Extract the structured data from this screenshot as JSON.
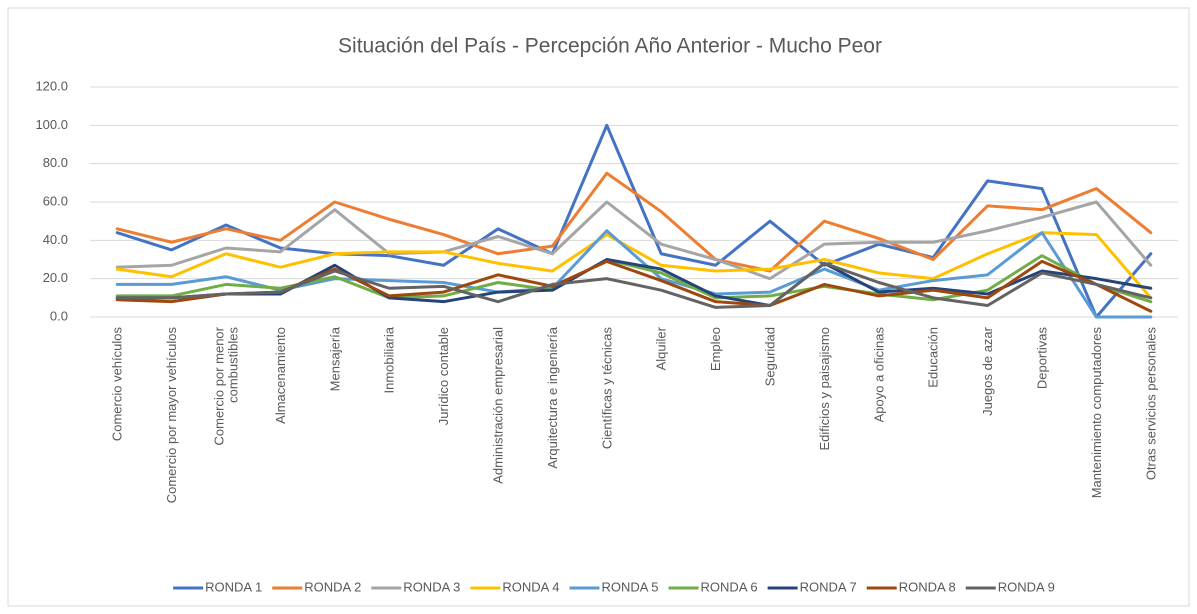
{
  "chart_data": {
    "type": "line",
    "title": "Situación del País - Percepción Año Anterior - Mucho Peor",
    "categories": [
      "Comercio vehículos",
      "Comercio  por mayor vehículos",
      "Comercio por menor\ncombustibles",
      "Almacenamiento",
      "Mensajería",
      "Inmobiliaria",
      "Jurídico contable",
      "Administración empresarial",
      "Arquitectura e ingeniería",
      "Científicas y técnicas",
      "Alquiler",
      "Empleo",
      "Seguridad",
      "Edificios y paisajismo",
      "Apoyo a oficinas",
      "Educación",
      "Juegos de azar",
      "Deportivas",
      "Mantenimiento computadores",
      "Otras servicios personales"
    ],
    "series": [
      {
        "name": "RONDA 1",
        "color": "#4472c4",
        "values": [
          44,
          35,
          48,
          36,
          33,
          32,
          27,
          46,
          33,
          100,
          33,
          27,
          50,
          27,
          38,
          31,
          71,
          67,
          0,
          33
        ]
      },
      {
        "name": "RONDA 2",
        "color": "#ed7d31",
        "values": [
          46,
          39,
          46,
          40,
          60,
          51,
          43,
          33,
          37,
          75,
          55,
          30,
          24,
          50,
          41,
          30,
          58,
          56,
          67,
          44
        ]
      },
      {
        "name": "RONDA 3",
        "color": "#a5a5a5",
        "values": [
          26,
          27,
          36,
          34,
          56,
          33,
          34,
          42,
          33,
          60,
          38,
          30,
          20,
          38,
          39,
          39,
          45,
          52,
          60,
          27
        ]
      },
      {
        "name": "RONDA 4",
        "color": "#ffc000",
        "values": [
          25,
          21,
          33,
          26,
          33,
          34,
          34,
          28,
          24,
          43,
          27,
          24,
          25,
          30,
          23,
          20,
          33,
          44,
          43,
          10
        ]
      },
      {
        "name": "RONDA 5",
        "color": "#5b9bd5",
        "values": [
          17,
          17,
          21,
          14,
          20,
          19,
          18,
          13,
          15,
          45,
          20,
          12,
          13,
          25,
          14,
          19,
          22,
          44,
          0,
          0
        ]
      },
      {
        "name": "RONDA 6",
        "color": "#70ad47",
        "values": [
          11,
          11,
          17,
          15,
          21,
          10,
          11,
          18,
          14,
          30,
          23,
          10,
          11,
          16,
          12,
          9,
          14,
          32,
          17,
          8
        ]
      },
      {
        "name": "RONDA 7",
        "color": "#264478",
        "values": [
          10,
          10,
          12,
          12,
          27,
          10,
          8,
          13,
          14,
          30,
          25,
          11,
          6,
          28,
          13,
          15,
          12,
          24,
          20,
          15
        ]
      },
      {
        "name": "RONDA 8",
        "color": "#9e480e",
        "values": [
          9,
          8,
          12,
          13,
          25,
          11,
          13,
          22,
          16,
          29,
          19,
          8,
          6,
          17,
          11,
          14,
          10,
          29,
          17,
          3
        ]
      },
      {
        "name": "RONDA 9",
        "color": "#636363",
        "values": [
          10,
          10,
          12,
          13,
          24,
          15,
          16,
          8,
          17,
          20,
          14,
          5,
          6,
          28,
          18,
          10,
          6,
          23,
          17,
          10
        ]
      }
    ],
    "ylim": [
      0,
      120
    ],
    "yticks": [
      {
        "value": 0,
        "label": "0.0"
      },
      {
        "value": 20,
        "label": "20.0"
      },
      {
        "value": 40,
        "label": "40.0"
      },
      {
        "value": 60,
        "label": "60.0"
      },
      {
        "value": 80,
        "label": "80.0"
      },
      {
        "value": 100,
        "label": "100.0"
      },
      {
        "value": 120,
        "label": "120.0"
      }
    ],
    "grid": true,
    "legend": "bottom"
  }
}
